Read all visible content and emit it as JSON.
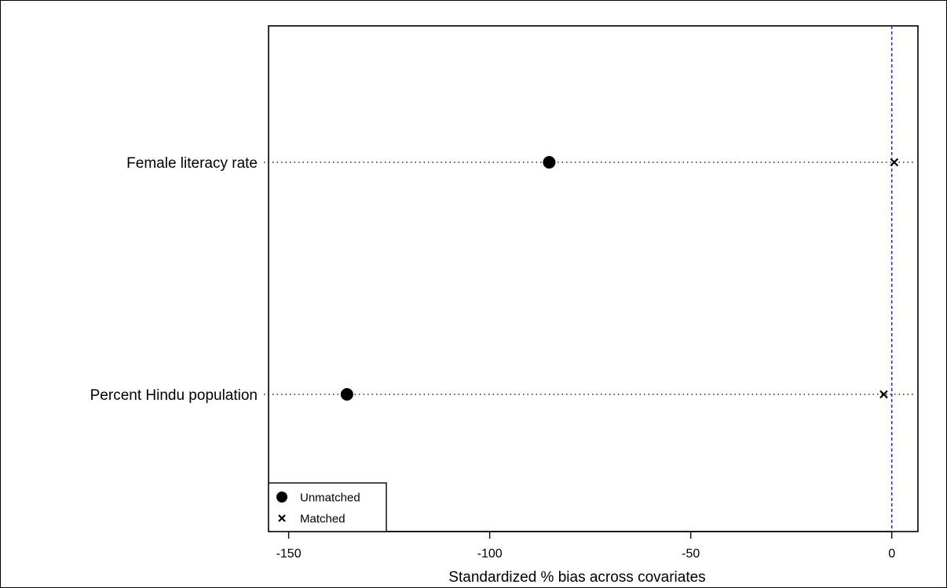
{
  "chart_data": {
    "type": "scatter",
    "title": "",
    "xlabel": "Standardized % bias across covariates",
    "ylabel": "",
    "xlim": [
      -155,
      6.5
    ],
    "xticks": [
      -150,
      -100,
      -50,
      0
    ],
    "xtick_labels": [
      "-150",
      "-100",
      "-50",
      "0"
    ],
    "grid": false,
    "reference_line": {
      "x": 0,
      "color": "#0000ff",
      "style": "dashed"
    },
    "categories": [
      "Female literacy rate",
      "Percent Hindu population"
    ],
    "series": [
      {
        "name": "Unmatched",
        "marker": "filled-circle",
        "values": [
          -85.2,
          -135.5
        ]
      },
      {
        "name": "Matched",
        "marker": "x",
        "values": [
          0.6,
          -2.0
        ]
      }
    ],
    "legend": {
      "placement": "bottom-left",
      "entries": [
        {
          "label": "Unmatched",
          "marker": "filled-circle"
        },
        {
          "label": "Matched",
          "marker": "x"
        }
      ]
    }
  }
}
